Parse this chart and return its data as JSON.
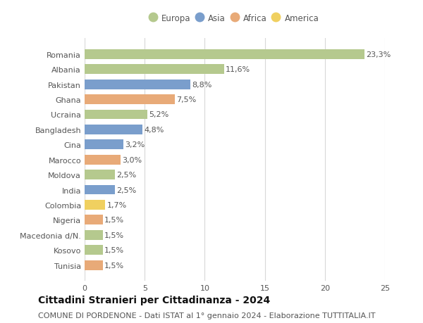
{
  "countries": [
    "Romania",
    "Albania",
    "Pakistan",
    "Ghana",
    "Ucraina",
    "Bangladesh",
    "Cina",
    "Marocco",
    "Moldova",
    "India",
    "Colombia",
    "Nigeria",
    "Macedonia d/N.",
    "Kosovo",
    "Tunisia"
  ],
  "values": [
    23.3,
    11.6,
    8.8,
    7.5,
    5.2,
    4.8,
    3.2,
    3.0,
    2.5,
    2.5,
    1.7,
    1.5,
    1.5,
    1.5,
    1.5
  ],
  "labels": [
    "23,3%",
    "11,6%",
    "8,8%",
    "7,5%",
    "5,2%",
    "4,8%",
    "3,2%",
    "3,0%",
    "2,5%",
    "2,5%",
    "1,7%",
    "1,5%",
    "1,5%",
    "1,5%",
    "1,5%"
  ],
  "continents": [
    "Europa",
    "Europa",
    "Asia",
    "Africa",
    "Europa",
    "Asia",
    "Asia",
    "Africa",
    "Europa",
    "Asia",
    "America",
    "Africa",
    "Europa",
    "Europa",
    "Africa"
  ],
  "continent_colors": {
    "Europa": "#b5c98e",
    "Asia": "#7a9ecc",
    "Africa": "#e8aa78",
    "America": "#f0d060"
  },
  "legend_order": [
    "Europa",
    "Asia",
    "Africa",
    "America"
  ],
  "title": "Cittadini Stranieri per Cittadinanza - 2024",
  "subtitle": "COMUNE DI PORDENONE - Dati ISTAT al 1° gennaio 2024 - Elaborazione TUTTITALIA.IT",
  "xlim": [
    0,
    25
  ],
  "xticks": [
    0,
    5,
    10,
    15,
    20,
    25
  ],
  "background_color": "#ffffff",
  "grid_color": "#d8d8d8",
  "title_fontsize": 10,
  "subtitle_fontsize": 8,
  "label_fontsize": 8,
  "tick_fontsize": 8,
  "legend_fontsize": 8.5,
  "bar_height": 0.65
}
